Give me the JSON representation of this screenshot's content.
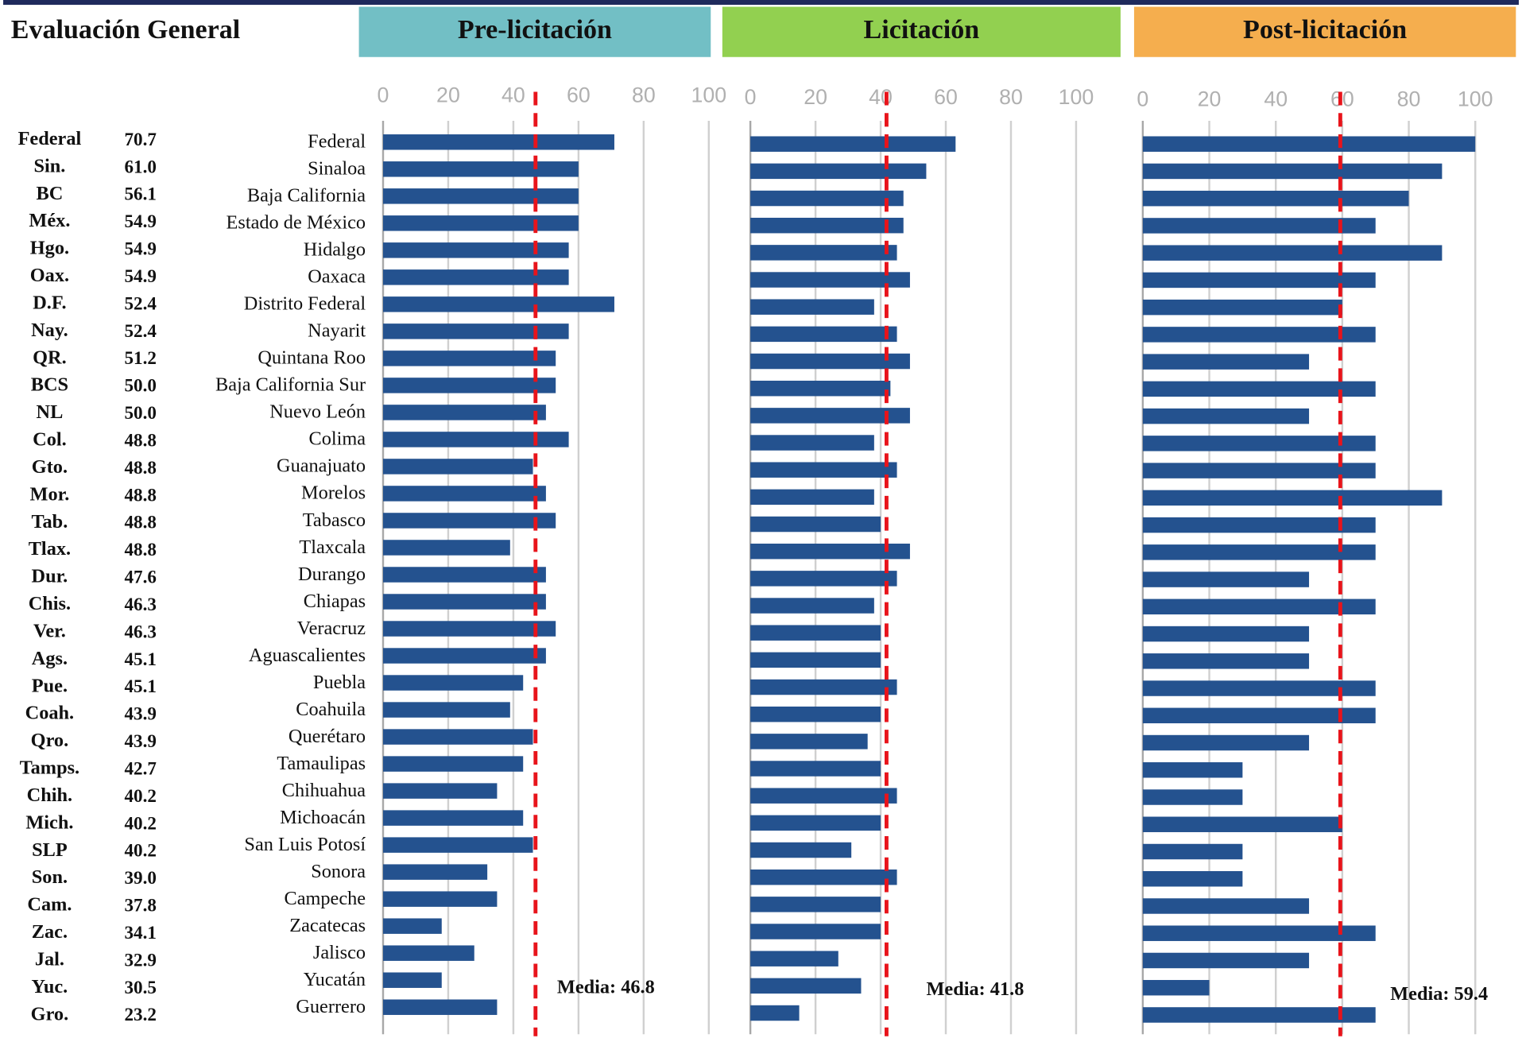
{
  "table": {
    "title": "Evaluación General",
    "rows": [
      [
        "Federal",
        "70.7"
      ],
      [
        "Sin.",
        "61.0"
      ],
      [
        "BC",
        "56.1"
      ],
      [
        "Méx.",
        "54.9"
      ],
      [
        "Hgo.",
        "54.9"
      ],
      [
        "Oax.",
        "54.9"
      ],
      [
        "D.F.",
        "52.4"
      ],
      [
        "Nay.",
        "52.4"
      ],
      [
        "QR.",
        "51.2"
      ],
      [
        "BCS",
        "50.0"
      ],
      [
        "NL",
        "50.0"
      ],
      [
        "Col.",
        "48.8"
      ],
      [
        "Gto.",
        "48.8"
      ],
      [
        "Mor.",
        "48.8"
      ],
      [
        "Tab.",
        "48.8"
      ],
      [
        "Tlax.",
        "48.8"
      ],
      [
        "Dur.",
        "47.6"
      ],
      [
        "Chis.",
        "46.3"
      ],
      [
        "Ver.",
        "46.3"
      ],
      [
        "Ags.",
        "45.1"
      ],
      [
        "Pue.",
        "45.1"
      ],
      [
        "Coah.",
        "43.9"
      ],
      [
        "Qro.",
        "43.9"
      ],
      [
        "Tamps.",
        "42.7"
      ],
      [
        "Chih.",
        "40.2"
      ],
      [
        "Mich.",
        "40.2"
      ],
      [
        "SLP",
        "40.2"
      ],
      [
        "Son.",
        "39.0"
      ],
      [
        "Cam.",
        "37.8"
      ],
      [
        "Zac.",
        "34.1"
      ],
      [
        "Jal.",
        "32.9"
      ],
      [
        "Yuc.",
        "30.5"
      ],
      [
        "Gro.",
        "23.2"
      ]
    ]
  },
  "chart_data": [
    {
      "type": "bar",
      "title": "Pre-licitación",
      "header_color": "#72bfc5",
      "color": "#24528f",
      "categories": [
        "Federal",
        "Sinaloa",
        "Baja California",
        "Estado de México",
        "Hidalgo",
        "Oaxaca",
        "Distrito Federal",
        "Nayarit",
        "Quintana Roo",
        "Baja California Sur",
        "Nuevo León",
        "Colima",
        "Guanajuato",
        "Morelos",
        "Tabasco",
        "Tlaxcala",
        "Durango",
        "Chiapas",
        "Veracruz",
        "Aguascalientes",
        "Puebla",
        "Coahuila",
        "Querétaro",
        "Tamaulipas",
        "Chihuahua",
        "Michoacán",
        "San Luis Potosí",
        "Sonora",
        "Campeche",
        "Zacatecas",
        "Jalisco",
        "Yucatán",
        "Guerrero"
      ],
      "values": [
        71,
        60,
        60,
        60,
        57,
        57,
        71,
        57,
        53,
        53,
        50,
        57,
        46,
        50,
        53,
        39,
        50,
        50,
        53,
        50,
        43,
        39,
        46,
        43,
        35,
        43,
        46,
        32,
        35,
        18,
        28,
        18,
        35
      ],
      "xlim": [
        0,
        100
      ],
      "xticks": [
        0,
        20,
        40,
        60,
        80,
        100
      ],
      "grid": true,
      "mean": 46.8,
      "annotation": "Media: 46.8",
      "mean_color": "#e8141b"
    },
    {
      "type": "bar",
      "title": "Licitación",
      "header_color": "#92d050",
      "color": "#24528f",
      "values": [
        63,
        54,
        47,
        47,
        45,
        49,
        38,
        45,
        49,
        43,
        49,
        38,
        45,
        38,
        40,
        49,
        45,
        38,
        40,
        40,
        45,
        40,
        36,
        40,
        45,
        40,
        31,
        45,
        40,
        40,
        27,
        34,
        15
      ],
      "xlim": [
        0,
        100
      ],
      "xticks": [
        0,
        20,
        40,
        60,
        80,
        100
      ],
      "grid": true,
      "mean": 41.8,
      "annotation": "Media: 41.8",
      "mean_color": "#e8141b"
    },
    {
      "type": "bar",
      "title": "Post-licitación",
      "header_color": "#f5ae4e",
      "color": "#24528f",
      "values": [
        100,
        90,
        80,
        70,
        90,
        70,
        60,
        70,
        50,
        70,
        50,
        70,
        70,
        90,
        70,
        70,
        50,
        70,
        50,
        50,
        70,
        70,
        50,
        30,
        30,
        60,
        30,
        30,
        50,
        70,
        50,
        20,
        70
      ],
      "xlim": [
        0,
        100
      ],
      "xticks": [
        0,
        20,
        40,
        60,
        80,
        100
      ],
      "grid": true,
      "mean": 59.4,
      "annotation": "Media: 59.4",
      "mean_color": "#e8141b"
    }
  ]
}
